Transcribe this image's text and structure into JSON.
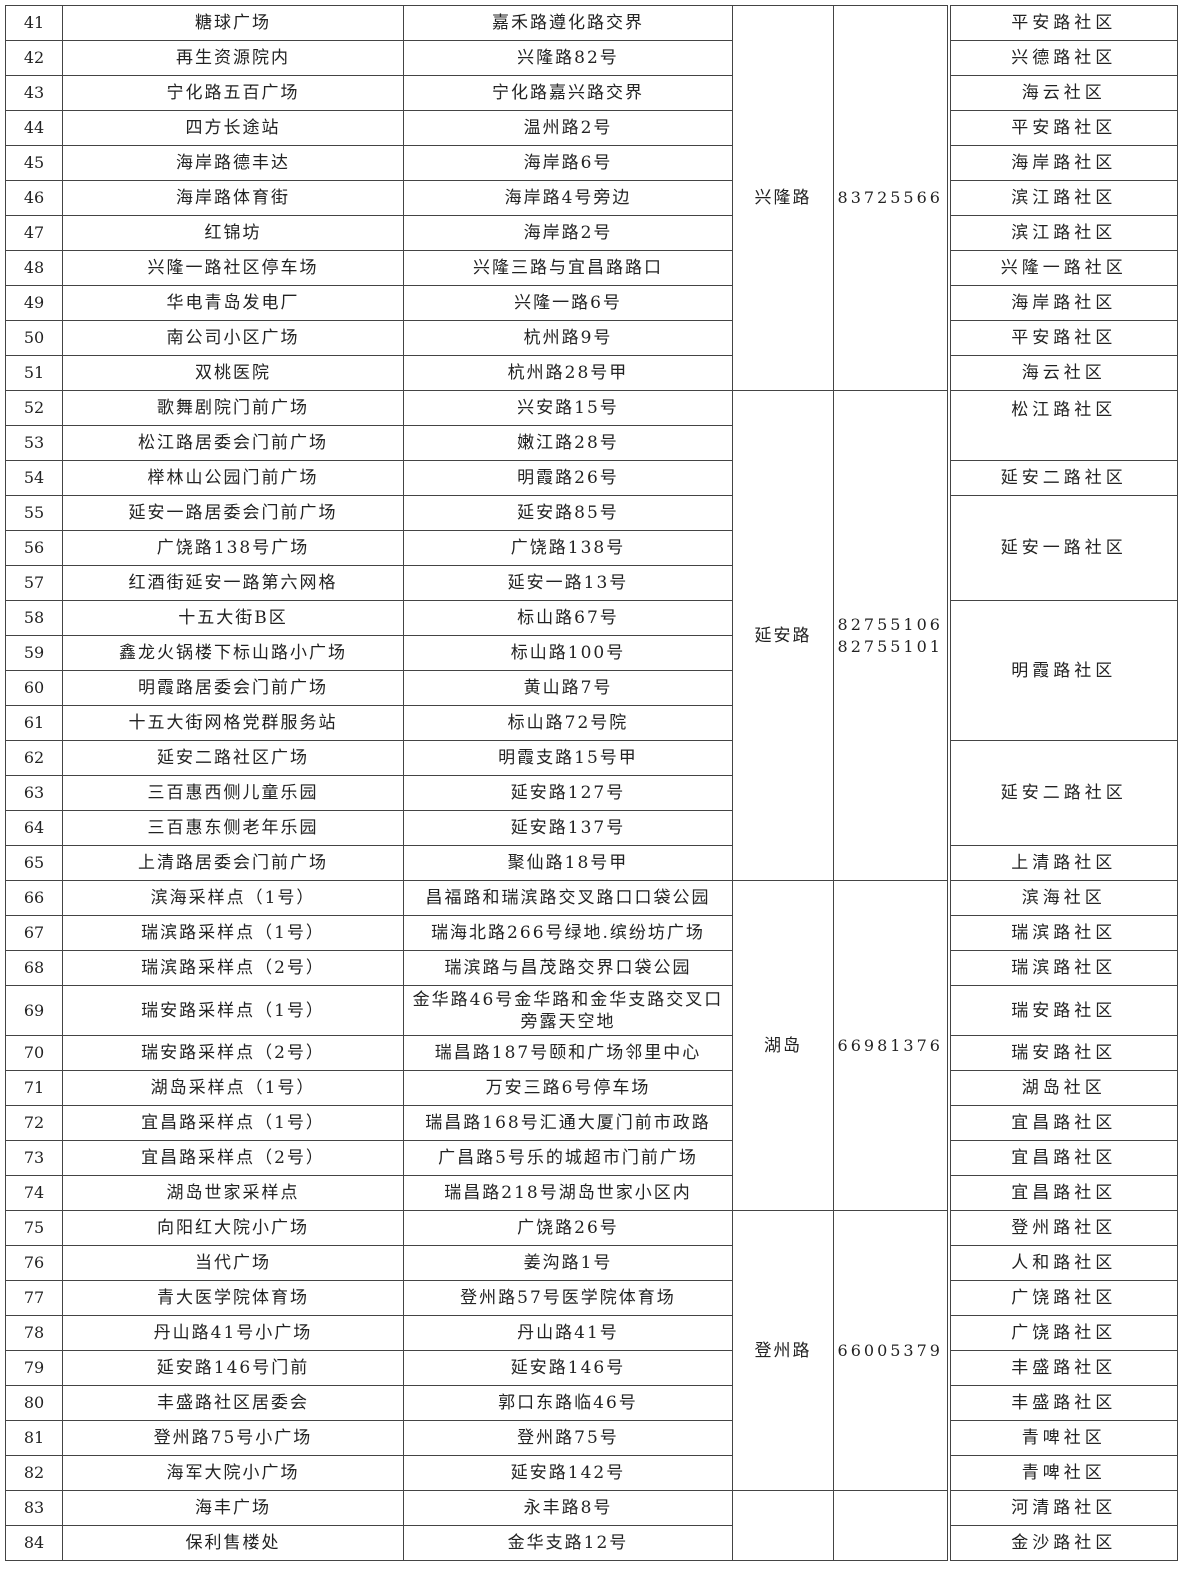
{
  "rows": [
    {
      "no": "41",
      "name": "糖球广场",
      "address": "嘉禾路遵化路交界"
    },
    {
      "no": "42",
      "name": "再生资源院内",
      "address": "兴隆路82号"
    },
    {
      "no": "43",
      "name": "宁化路五百广场",
      "address": "宁化路嘉兴路交界"
    },
    {
      "no": "44",
      "name": "四方长途站",
      "address": "温州路2号"
    },
    {
      "no": "45",
      "name": "海岸路德丰达",
      "address": "海岸路6号"
    },
    {
      "no": "46",
      "name": "海岸路体育街",
      "address": "海岸路4号旁边"
    },
    {
      "no": "47",
      "name": "红锦坊",
      "address": "海岸路2号"
    },
    {
      "no": "48",
      "name": "兴隆一路社区停车场",
      "address": "兴隆三路与宜昌路路口"
    },
    {
      "no": "49",
      "name": "华电青岛发电厂",
      "address": "兴隆一路6号"
    },
    {
      "no": "50",
      "name": "南公司小区广场",
      "address": "杭州路9号"
    },
    {
      "no": "51",
      "name": "双桃医院",
      "address": "杭州路28号甲"
    },
    {
      "no": "52",
      "name": "歌舞剧院门前广场",
      "address": "兴安路15号"
    },
    {
      "no": "53",
      "name": "松江路居委会门前广场",
      "address": "嫩江路28号"
    },
    {
      "no": "54",
      "name": "榉林山公园门前广场",
      "address": "明霞路26号"
    },
    {
      "no": "55",
      "name": "延安一路居委会门前广场",
      "address": "延安路85号"
    },
    {
      "no": "56",
      "name": "广饶路138号广场",
      "address": "广饶路138号"
    },
    {
      "no": "57",
      "name": "红酒街延安一路第六网格",
      "address": "延安一路13号"
    },
    {
      "no": "58",
      "name": "十五大街B区",
      "address": "标山路67号"
    },
    {
      "no": "59",
      "name": "鑫龙火锅楼下标山路小广场",
      "address": "标山路100号"
    },
    {
      "no": "60",
      "name": "明霞路居委会门前广场",
      "address": "黄山路7号"
    },
    {
      "no": "61",
      "name": "十五大街网格党群服务站",
      "address": "标山路72号院"
    },
    {
      "no": "62",
      "name": "延安二路社区广场",
      "address": "明霞支路15号甲"
    },
    {
      "no": "63",
      "name": "三百惠西侧儿童乐园",
      "address": "延安路127号"
    },
    {
      "no": "64",
      "name": "三百惠东侧老年乐园",
      "address": "延安路137号"
    },
    {
      "no": "65",
      "name": "上清路居委会门前广场",
      "address": "聚仙路18号甲"
    },
    {
      "no": "66",
      "name": "滨海采样点（1号）",
      "address": "昌福路和瑞滨路交叉路口口袋公园"
    },
    {
      "no": "67",
      "name": "瑞滨路采样点（1号）",
      "address": "瑞海北路266号绿地.缤纷坊广场"
    },
    {
      "no": "68",
      "name": "瑞滨路采样点（2号）",
      "address": "瑞滨路与昌茂路交界口袋公园"
    },
    {
      "no": "69",
      "name": "瑞安路采样点（1号）",
      "address": "金华路46号金华路和金华支路交叉口旁露天空地"
    },
    {
      "no": "70",
      "name": "瑞安路采样点（2号）",
      "address": "瑞昌路187号颐和广场邻里中心"
    },
    {
      "no": "71",
      "name": "湖岛采样点（1号）",
      "address": "万安三路6号停车场"
    },
    {
      "no": "72",
      "name": "宜昌路采样点（1号）",
      "address": "瑞昌路168号汇通大厦门前市政路"
    },
    {
      "no": "73",
      "name": "宜昌路采样点（2号）",
      "address": "广昌路5号乐的城超市门前广场"
    },
    {
      "no": "74",
      "name": "湖岛世家采样点",
      "address": "瑞昌路218号湖岛世家小区内"
    },
    {
      "no": "75",
      "name": "向阳红大院小广场",
      "address": "广饶路26号"
    },
    {
      "no": "76",
      "name": "当代广场",
      "address": "姜沟路1号"
    },
    {
      "no": "77",
      "name": "青大医学院体育场",
      "address": "登州路57号医学院体育场"
    },
    {
      "no": "78",
      "name": "丹山路41号小广场",
      "address": "丹山路41号"
    },
    {
      "no": "79",
      "name": "延安路146号门前",
      "address": "延安路146号"
    },
    {
      "no": "80",
      "name": "丰盛路社区居委会",
      "address": "郭口东路临46号"
    },
    {
      "no": "81",
      "name": "登州路75号小广场",
      "address": "登州路75号"
    },
    {
      "no": "82",
      "name": "海军大院小广场",
      "address": "延安路142号"
    },
    {
      "no": "83",
      "name": "海丰广场",
      "address": "永丰路8号"
    },
    {
      "no": "84",
      "name": "保利售楼处",
      "address": "金华支路12号"
    }
  ],
  "groups": [
    {
      "street": "兴隆路",
      "phones": [
        "83725566"
      ],
      "span": 11
    },
    {
      "street": "延安路",
      "phones": [
        "82755106",
        "82755101"
      ],
      "span": 14
    },
    {
      "street": "湖岛",
      "phones": [
        "66981376"
      ],
      "span": 9
    },
    {
      "street": "登州路",
      "phones": [
        "66005379"
      ],
      "span": 8
    },
    {
      "street": "",
      "phones": [],
      "span": 2
    }
  ],
  "communities": [
    {
      "name": "平安路社区",
      "span": 1
    },
    {
      "name": "兴德路社区",
      "span": 1
    },
    {
      "name": "海云社区",
      "span": 1
    },
    {
      "name": "平安路社区",
      "span": 1
    },
    {
      "name": "海岸路社区",
      "span": 1
    },
    {
      "name": "滨江路社区",
      "span": 1
    },
    {
      "name": "滨江路社区",
      "span": 1
    },
    {
      "name": "兴隆一路社区",
      "span": 1
    },
    {
      "name": "海岸路社区",
      "span": 1
    },
    {
      "name": "平安路社区",
      "span": 1
    },
    {
      "name": "海云社区",
      "span": 1
    },
    {
      "name": "松江路社区",
      "span": 2,
      "top": true
    },
    {
      "name": "延安二路社区",
      "span": 1
    },
    {
      "name": "延安一路社区",
      "span": 3
    },
    {
      "name": "明霞路社区",
      "span": 4
    },
    {
      "name": "延安二路社区",
      "span": 3
    },
    {
      "name": "上清路社区",
      "span": 1
    },
    {
      "name": "滨海社区",
      "span": 1
    },
    {
      "name": "瑞滨路社区",
      "span": 1
    },
    {
      "name": "瑞滨路社区",
      "span": 1
    },
    {
      "name": "瑞安路社区",
      "span": 1
    },
    {
      "name": "瑞安路社区",
      "span": 1
    },
    {
      "name": "湖岛社区",
      "span": 1
    },
    {
      "name": "宜昌路社区",
      "span": 1
    },
    {
      "name": "宜昌路社区",
      "span": 1
    },
    {
      "name": "宜昌路社区",
      "span": 1
    },
    {
      "name": "登州路社区",
      "span": 1
    },
    {
      "name": "人和路社区",
      "span": 1
    },
    {
      "name": "广饶路社区",
      "span": 1
    },
    {
      "name": "广饶路社区",
      "span": 1
    },
    {
      "name": "丰盛路社区",
      "span": 1
    },
    {
      "name": "丰盛路社区",
      "span": 1
    },
    {
      "name": "青啤社区",
      "span": 1
    },
    {
      "name": "青啤社区",
      "span": 1
    },
    {
      "name": "河清路社区",
      "span": 1
    },
    {
      "name": "金沙路社区",
      "span": 1
    }
  ]
}
